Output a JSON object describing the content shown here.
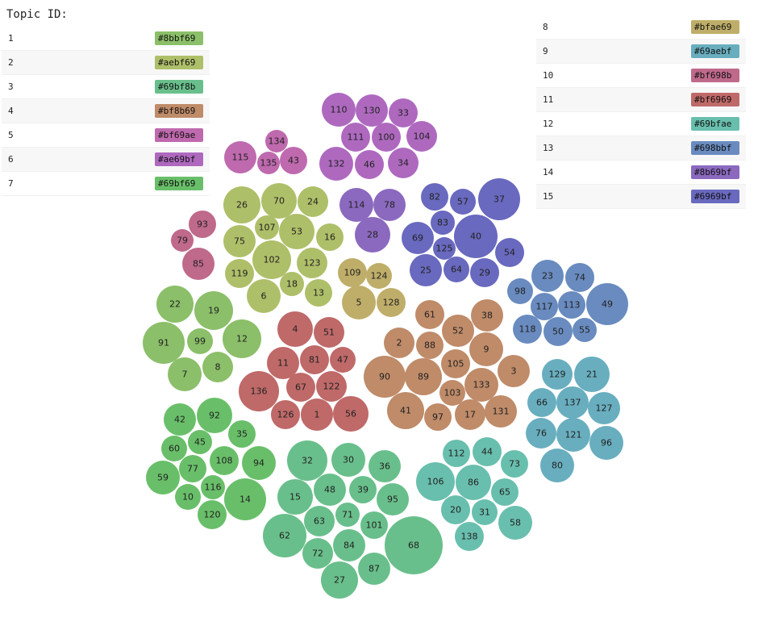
{
  "legend": {
    "title": "Topic ID:",
    "items": [
      {
        "id": "1",
        "color": "#8bbf69"
      },
      {
        "id": "2",
        "color": "#aebf69"
      },
      {
        "id": "3",
        "color": "#69bf8b"
      },
      {
        "id": "4",
        "color": "#bf8b69"
      },
      {
        "id": "5",
        "color": "#bf69ae"
      },
      {
        "id": "6",
        "color": "#ae69bf"
      },
      {
        "id": "7",
        "color": "#69bf69"
      },
      {
        "id": "8",
        "color": "#bfae69"
      },
      {
        "id": "9",
        "color": "#69aebf"
      },
      {
        "id": "10",
        "color": "#bf698b"
      },
      {
        "id": "11",
        "color": "#bf6969"
      },
      {
        "id": "12",
        "color": "#69bfae"
      },
      {
        "id": "13",
        "color": "#698bbf"
      },
      {
        "id": "14",
        "color": "#8b69bf"
      },
      {
        "id": "15",
        "color": "#6969bf"
      }
    ]
  },
  "bubbles": [
    {
      "label": "110",
      "topic": 6
    },
    {
      "label": "130",
      "topic": 6
    },
    {
      "label": "33",
      "topic": 6
    },
    {
      "label": "111",
      "topic": 6
    },
    {
      "label": "100",
      "topic": 6
    },
    {
      "label": "104",
      "topic": 6
    },
    {
      "label": "132",
      "topic": 6
    },
    {
      "label": "46",
      "topic": 6
    },
    {
      "label": "34",
      "topic": 6
    },
    {
      "label": "134",
      "topic": 5
    },
    {
      "label": "115",
      "topic": 5
    },
    {
      "label": "135",
      "topic": 5
    },
    {
      "label": "43",
      "topic": 5
    },
    {
      "label": "93",
      "topic": 10
    },
    {
      "label": "79",
      "topic": 10
    },
    {
      "label": "85",
      "topic": 10
    },
    {
      "label": "26",
      "topic": 2
    },
    {
      "label": "70",
      "topic": 2
    },
    {
      "label": "24",
      "topic": 2
    },
    {
      "label": "107",
      "topic": 2
    },
    {
      "label": "53",
      "topic": 2
    },
    {
      "label": "75",
      "topic": 2
    },
    {
      "label": "16",
      "topic": 2
    },
    {
      "label": "102",
      "topic": 2
    },
    {
      "label": "119",
      "topic": 2
    },
    {
      "label": "123",
      "topic": 2
    },
    {
      "label": "18",
      "topic": 2
    },
    {
      "label": "6",
      "topic": 2
    },
    {
      "label": "13",
      "topic": 2
    },
    {
      "label": "109",
      "topic": 8
    },
    {
      "label": "124",
      "topic": 8
    },
    {
      "label": "5",
      "topic": 8
    },
    {
      "label": "128",
      "topic": 8
    },
    {
      "label": "114",
      "topic": 14
    },
    {
      "label": "78",
      "topic": 14
    },
    {
      "label": "28",
      "topic": 14
    },
    {
      "label": "82",
      "topic": 15
    },
    {
      "label": "57",
      "topic": 15
    },
    {
      "label": "37",
      "topic": 15
    },
    {
      "label": "83",
      "topic": 15
    },
    {
      "label": "69",
      "topic": 15
    },
    {
      "label": "40",
      "topic": 15
    },
    {
      "label": "125",
      "topic": 15
    },
    {
      "label": "54",
      "topic": 15
    },
    {
      "label": "25",
      "topic": 15
    },
    {
      "label": "64",
      "topic": 15
    },
    {
      "label": "29",
      "topic": 15
    },
    {
      "label": "23",
      "topic": 13
    },
    {
      "label": "74",
      "topic": 13
    },
    {
      "label": "98",
      "topic": 13
    },
    {
      "label": "117",
      "topic": 13
    },
    {
      "label": "113",
      "topic": 13
    },
    {
      "label": "49",
      "topic": 13
    },
    {
      "label": "118",
      "topic": 13
    },
    {
      "label": "50",
      "topic": 13
    },
    {
      "label": "55",
      "topic": 13
    },
    {
      "label": "22",
      "topic": 1
    },
    {
      "label": "19",
      "topic": 1
    },
    {
      "label": "91",
      "topic": 1
    },
    {
      "label": "99",
      "topic": 1
    },
    {
      "label": "12",
      "topic": 1
    },
    {
      "label": "7",
      "topic": 1
    },
    {
      "label": "8",
      "topic": 1
    },
    {
      "label": "4",
      "topic": 11
    },
    {
      "label": "51",
      "topic": 11
    },
    {
      "label": "11",
      "topic": 11
    },
    {
      "label": "81",
      "topic": 11
    },
    {
      "label": "47",
      "topic": 11
    },
    {
      "label": "136",
      "topic": 11
    },
    {
      "label": "67",
      "topic": 11
    },
    {
      "label": "122",
      "topic": 11
    },
    {
      "label": "126",
      "topic": 11
    },
    {
      "label": "1",
      "topic": 11
    },
    {
      "label": "56",
      "topic": 11
    },
    {
      "label": "61",
      "topic": 4
    },
    {
      "label": "38",
      "topic": 4
    },
    {
      "label": "52",
      "topic": 4
    },
    {
      "label": "2",
      "topic": 4
    },
    {
      "label": "88",
      "topic": 4
    },
    {
      "label": "9",
      "topic": 4
    },
    {
      "label": "105",
      "topic": 4
    },
    {
      "label": "90",
      "topic": 4
    },
    {
      "label": "89",
      "topic": 4
    },
    {
      "label": "3",
      "topic": 4
    },
    {
      "label": "133",
      "topic": 4
    },
    {
      "label": "103",
      "topic": 4
    },
    {
      "label": "41",
      "topic": 4
    },
    {
      "label": "97",
      "topic": 4
    },
    {
      "label": "17",
      "topic": 4
    },
    {
      "label": "131",
      "topic": 4
    },
    {
      "label": "129",
      "topic": 9
    },
    {
      "label": "21",
      "topic": 9
    },
    {
      "label": "66",
      "topic": 9
    },
    {
      "label": "137",
      "topic": 9
    },
    {
      "label": "127",
      "topic": 9
    },
    {
      "label": "76",
      "topic": 9
    },
    {
      "label": "121",
      "topic": 9
    },
    {
      "label": "96",
      "topic": 9
    },
    {
      "label": "80",
      "topic": 9
    },
    {
      "label": "42",
      "topic": 7
    },
    {
      "label": "92",
      "topic": 7
    },
    {
      "label": "35",
      "topic": 7
    },
    {
      "label": "60",
      "topic": 7
    },
    {
      "label": "45",
      "topic": 7
    },
    {
      "label": "108",
      "topic": 7
    },
    {
      "label": "94",
      "topic": 7
    },
    {
      "label": "59",
      "topic": 7
    },
    {
      "label": "77",
      "topic": 7
    },
    {
      "label": "116",
      "topic": 7
    },
    {
      "label": "10",
      "topic": 7
    },
    {
      "label": "14",
      "topic": 7
    },
    {
      "label": "120",
      "topic": 7
    },
    {
      "label": "32",
      "topic": 3
    },
    {
      "label": "30",
      "topic": 3
    },
    {
      "label": "36",
      "topic": 3
    },
    {
      "label": "15",
      "topic": 3
    },
    {
      "label": "48",
      "topic": 3
    },
    {
      "label": "39",
      "topic": 3
    },
    {
      "label": "95",
      "topic": 3
    },
    {
      "label": "71",
      "topic": 3
    },
    {
      "label": "63",
      "topic": 3
    },
    {
      "label": "101",
      "topic": 3
    },
    {
      "label": "62",
      "topic": 3
    },
    {
      "label": "84",
      "topic": 3
    },
    {
      "label": "72",
      "topic": 3
    },
    {
      "label": "68",
      "topic": 3
    },
    {
      "label": "87",
      "topic": 3
    },
    {
      "label": "27",
      "topic": 3
    },
    {
      "label": "112",
      "topic": 12
    },
    {
      "label": "44",
      "topic": 12
    },
    {
      "label": "106",
      "topic": 12
    },
    {
      "label": "86",
      "topic": 12
    },
    {
      "label": "73",
      "topic": 12
    },
    {
      "label": "65",
      "topic": 12
    },
    {
      "label": "20",
      "topic": 12
    },
    {
      "label": "31",
      "topic": 12
    },
    {
      "label": "58",
      "topic": 12
    },
    {
      "label": "138",
      "topic": 12
    }
  ]
}
